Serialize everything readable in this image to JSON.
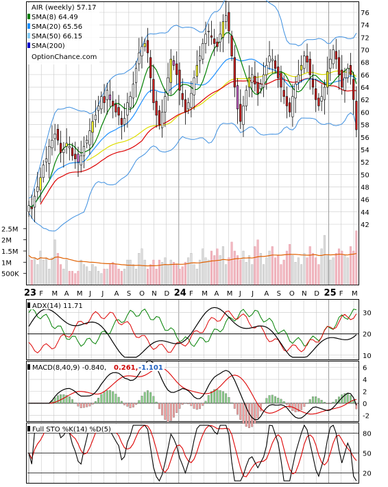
{
  "colors": {
    "background": "#ffffff",
    "panel_border": "#000000",
    "grid": "#c8c8c8",
    "candle_up": "#ffffff",
    "candle_down": "#cc2222",
    "candle_up_yellow": "#ffff33",
    "candle_down_magenta": "#cc66cc",
    "sma8": "#008000",
    "sma20": "#1e90ff",
    "sma50": "#dddd00",
    "sma200": "#dd0000",
    "bollinger": "#3d8fe0",
    "volume_up": "#dcdcdc",
    "volume_down": "#f2b8c0",
    "volume_avg": "#e06000",
    "adx": "#000000",
    "plus_di": "#008000",
    "minus_di": "#dd0000",
    "macd_line": "#000000",
    "macd_signal": "#dd0000",
    "macd_hist_up": "#88cc88",
    "macd_hist_down": "#f0a0a0",
    "sto_k": "#000000",
    "sto_d": "#dd0000",
    "macd_val2": "#cc0000",
    "macd_val3": "#1e5fbf"
  },
  "legend": {
    "title": "AIR (weekly) 57.17",
    "items": [
      {
        "label": "SMA(8) 64.49",
        "color": "#008000"
      },
      {
        "label": "SMA(20) 65.56",
        "color": "#1e90ff"
      },
      {
        "label": "SMA(50) 66.15",
        "color": "#87cefa"
      },
      {
        "label": "SMA(200)",
        "color": "#0000cc"
      }
    ],
    "source": "OptionChance.com"
  },
  "x_axis": {
    "labels": [
      "23",
      "F",
      "M",
      "A",
      "M",
      "J",
      "J",
      "A",
      "S",
      "O",
      "N",
      "D",
      "24",
      "F",
      "M",
      "A",
      "M",
      "J",
      "J",
      "A",
      "S",
      "O",
      "N",
      "D",
      "25",
      "F",
      "M"
    ],
    "bold": [
      "23",
      "24",
      "25"
    ]
  },
  "indicators": {
    "adx_label": "ADX(14) 11.71",
    "macd_label": "MACD(8,40,9) -0.840,",
    "macd_val2": "0.261,",
    "macd_val3": "-1.101",
    "sto_label": "Full STO %K(14) %D(5)"
  },
  "chart_data": {
    "type": "candlestick",
    "title": "AIR (weekly) 57.17",
    "price_axis": {
      "ticks": [
        "76",
        "74",
        "72",
        "70",
        "68",
        "66",
        "64",
        "62",
        "60",
        "58",
        "56",
        "54",
        "52",
        "50",
        "48",
        "46",
        "44",
        "42"
      ],
      "ylim": [
        42,
        76
      ]
    },
    "volume_axis": {
      "ticks": [
        "2.5M",
        "2M",
        "1.5M",
        "1M",
        "500K"
      ],
      "ylim": [
        0,
        2600000
      ]
    },
    "adx_axis": {
      "ticks": [
        "30",
        "20",
        "10"
      ],
      "ylim": [
        8,
        36
      ]
    },
    "macd_axis": {
      "ticks": [
        "6",
        "4",
        "2",
        "0",
        "-2"
      ],
      "ylim": [
        -3,
        7
      ]
    },
    "sto_axis": {
      "ticks": [
        "80",
        "50",
        "20"
      ],
      "ylim": [
        5,
        95
      ]
    },
    "weeks": 114,
    "close": [
      45.0,
      44.5,
      46.5,
      48.0,
      49.5,
      51.5,
      52.5,
      54.5,
      55.5,
      56.5,
      55.5,
      53.5,
      54.0,
      55.0,
      54.5,
      53.0,
      52.5,
      52.0,
      53.0,
      54.5,
      55.5,
      57.0,
      58.5,
      59.5,
      61.0,
      62.5,
      61.5,
      63.5,
      62.0,
      61.0,
      60.0,
      59.5,
      58.0,
      59.0,
      61.5,
      62.5,
      64.5,
      67.0,
      69.5,
      70.5,
      71.0,
      69.5,
      65.5,
      61.5,
      59.5,
      58.0,
      60.0,
      62.5,
      65.5,
      68.5,
      67.5,
      66.0,
      63.5,
      62.0,
      60.0,
      61.5,
      63.0,
      65.5,
      67.5,
      69.0,
      71.0,
      72.5,
      73.0,
      72.0,
      71.0,
      70.5,
      72.5,
      74.5,
      75.5,
      73.0,
      69.0,
      64.0,
      60.5,
      58.5,
      61.0,
      63.5,
      65.5,
      66.0,
      64.5,
      63.0,
      64.5,
      66.0,
      67.5,
      69.0,
      68.5,
      67.0,
      65.5,
      64.0,
      62.5,
      61.0,
      60.0,
      62.5,
      64.5,
      66.0,
      67.5,
      69.0,
      68.0,
      66.0,
      64.0,
      62.0,
      61.0,
      62.5,
      64.0,
      66.5,
      68.5,
      70.0,
      68.5,
      66.0,
      64.0,
      65.5,
      67.0,
      66.0,
      62.0,
      57.17
    ],
    "volume": [
      1300000,
      1100000,
      1200000,
      900000,
      1500000,
      1100000,
      1200000,
      700000,
      1200000,
      2000000,
      1400000,
      900000,
      700000,
      1100000,
      600000,
      600000,
      500000,
      600000,
      1100000,
      900000,
      800000,
      600000,
      900000,
      800000,
      600000,
      500000,
      700000,
      700000,
      900000,
      1000000,
      900000,
      700000,
      600000,
      700000,
      1100000,
      1100000,
      900000,
      700000,
      1400000,
      1600000,
      1100000,
      700000,
      900000,
      1100000,
      700000,
      1100000,
      1000000,
      1200000,
      900000,
      1100000,
      1000000,
      900000,
      700000,
      800000,
      1000000,
      1200000,
      1400000,
      900000,
      700000,
      1100000,
      1600000,
      1200000,
      1100000,
      1500000,
      1300000,
      1600000,
      1300000,
      1700000,
      900000,
      1200000,
      1900000,
      1500000,
      1300000,
      1100000,
      1500000,
      1000000,
      1300000,
      900000,
      1700000,
      2000000,
      1400000,
      900000,
      1200000,
      1500000,
      1700000,
      1200000,
      1300000,
      900000,
      1100000,
      1500000,
      1800000,
      1300000,
      1000000,
      1200000,
      900000,
      1400000,
      1200000,
      1700000,
      1400000,
      1200000,
      900000,
      1600000,
      2200000,
      1300000,
      1100000,
      1200000,
      1400000,
      1600000,
      1500000,
      1300000,
      1200000,
      1700000,
      1500000,
      2400000
    ]
  }
}
